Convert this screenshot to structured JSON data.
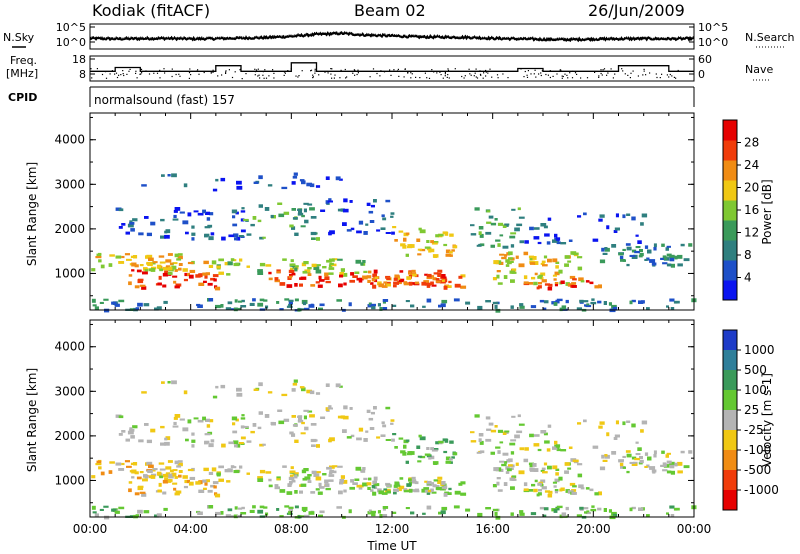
{
  "header": {
    "station": "Kodiak (fitACF)",
    "beam": "Beam 02",
    "date": "26/Jun/2009"
  },
  "strip_labels": {
    "nsky": "N.Sky",
    "freq_line1": "Freq.",
    "freq_line2": "[MHz]",
    "cpid": "CPID",
    "nsearch": "N.Search",
    "nave": "Nave",
    "program": "normalsound (fast) 157"
  },
  "chart_data": [
    {
      "type": "line",
      "panel": "noise",
      "series": [
        {
          "name": "N.Sky",
          "style": "solid"
        },
        {
          "name": "N.Search",
          "style": "dotted"
        }
      ],
      "left_ticks": [
        "10^5",
        "10^0"
      ],
      "right_ticks": [
        "10^5",
        "10^0"
      ],
      "x": [
        "00:00",
        "01:00",
        "02:00",
        "03:00",
        "04:00",
        "05:00",
        "06:00",
        "07:00",
        "08:00",
        "09:00",
        "10:00",
        "11:00",
        "12:00",
        "13:00",
        "14:00",
        "15:00",
        "16:00",
        "17:00",
        "18:00",
        "19:00",
        "20:00",
        "21:00",
        "22:00",
        "23:00",
        "00:00"
      ],
      "nsky_level": [
        0.42,
        0.4,
        0.41,
        0.42,
        0.4,
        0.41,
        0.43,
        0.45,
        0.5,
        0.58,
        0.62,
        0.55,
        0.52,
        0.48,
        0.47,
        0.46,
        0.42,
        0.4,
        0.38,
        0.37,
        0.39,
        0.4,
        0.41,
        0.4,
        0.41
      ]
    },
    {
      "type": "line",
      "panel": "frequency",
      "series": [
        {
          "name": "Freq. [MHz]",
          "style": "solid"
        },
        {
          "name": "Nave",
          "style": "dotted"
        }
      ],
      "left_ticks": [
        "18",
        "8"
      ],
      "right_ticks": [
        "60",
        "0"
      ],
      "x": [
        "00:00",
        "01:00",
        "02:00",
        "03:00",
        "04:00",
        "05:00",
        "06:00",
        "07:00",
        "08:00",
        "09:00",
        "10:00",
        "11:00",
        "12:00",
        "13:00",
        "14:00",
        "15:00",
        "16:00",
        "17:00",
        "18:00",
        "19:00",
        "20:00",
        "21:00",
        "22:00",
        "23:00",
        "00:00"
      ],
      "freq_mhz": [
        11.5,
        13.5,
        11.5,
        11.5,
        11.5,
        14.5,
        11.5,
        11.5,
        16,
        11.5,
        11.5,
        11.5,
        11.5,
        11.5,
        11.5,
        11.5,
        11.5,
        13,
        11.5,
        11.5,
        11.5,
        14.5,
        14.5,
        11.5,
        11.5
      ]
    },
    {
      "type": "heatmap",
      "panel": "power",
      "xlabel": "Time UT",
      "ylabel": "Slant Range [km]",
      "yticks": [
        "1000",
        "2000",
        "3000",
        "4000"
      ],
      "ylim": [
        180,
        4600
      ],
      "xticks": [
        "00:00",
        "04:00",
        "08:00",
        "12:00",
        "16:00",
        "20:00",
        "00:00"
      ],
      "xlim": [
        0,
        24
      ],
      "colorbar": {
        "label": "Power [dB]",
        "ticks": [
          "4",
          "8",
          "12",
          "16",
          "20",
          "24",
          "28"
        ],
        "colors": [
          "#0a14f0",
          "#1e50c8",
          "#2f7f7f",
          "#3a9a5a",
          "#7fc832",
          "#f0c814",
          "#f08c14",
          "#f03c0a",
          "#e60000"
        ]
      }
    },
    {
      "type": "heatmap",
      "panel": "velocity",
      "xlabel": "Time UT",
      "ylabel": "Slant Range [km]",
      "yticks": [
        "1000",
        "2000",
        "3000",
        "4000"
      ],
      "ylim": [
        180,
        4600
      ],
      "xticks": [
        "00:00",
        "04:00",
        "08:00",
        "12:00",
        "16:00",
        "20:00",
        "00:00"
      ],
      "xlim": [
        0,
        24
      ],
      "colorbar": {
        "label": "Velocity [m s-1]",
        "ticks": [
          "1000",
          "500",
          "100",
          "25",
          "-25",
          "-100",
          "-500",
          "-1000"
        ],
        "colors": [
          "#1e3cc8",
          "#2f7f9a",
          "#3a9a5a",
          "#64c832",
          "#b4b4b4",
          "#f0c814",
          "#f08c14",
          "#f03c0a",
          "#e60000"
        ]
      }
    }
  ]
}
